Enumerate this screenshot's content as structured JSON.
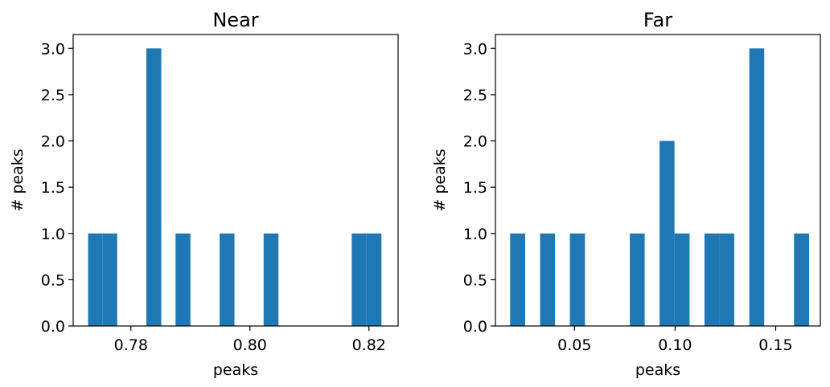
{
  "chart_data": [
    {
      "type": "bar",
      "title": "Near",
      "xlabel": "peaks",
      "ylabel": "# peaks",
      "xlim": [
        0.7703,
        0.8249
      ],
      "ylim": [
        0,
        3.15
      ],
      "xticks": [
        0.78,
        0.8,
        0.82
      ],
      "xtick_labels": [
        "0.78",
        "0.80",
        "0.82"
      ],
      "yticks": [
        0,
        0.5,
        1.0,
        1.5,
        2.0,
        2.5,
        3.0
      ],
      "ytick_labels": [
        "0.0",
        "0.5",
        "1.0",
        "1.5",
        "2.0",
        "2.5",
        "3.0"
      ],
      "bar_color": "#1f77b4",
      "bins": [
        {
          "x0": 0.7728,
          "x1": 0.7752,
          "count": 1
        },
        {
          "x0": 0.7752,
          "x1": 0.7777,
          "count": 1
        },
        {
          "x0": 0.7826,
          "x1": 0.7851,
          "count": 3
        },
        {
          "x0": 0.7875,
          "x1": 0.79,
          "count": 1
        },
        {
          "x0": 0.7949,
          "x1": 0.7974,
          "count": 1
        },
        {
          "x0": 0.8023,
          "x1": 0.8048,
          "count": 1
        },
        {
          "x0": 0.8171,
          "x1": 0.8196,
          "count": 1
        },
        {
          "x0": 0.8196,
          "x1": 0.8221,
          "count": 1
        }
      ]
    },
    {
      "type": "bar",
      "title": "Far",
      "xlabel": "peaks",
      "ylabel": "# peaks",
      "xlim": [
        0.0107,
        0.1722
      ],
      "ylim": [
        0,
        3.15
      ],
      "xticks": [
        0.05,
        0.1,
        0.15
      ],
      "xtick_labels": [
        "0.05",
        "0.10",
        "0.15"
      ],
      "yticks": [
        0,
        0.5,
        1.0,
        1.5,
        2.0,
        2.5,
        3.0
      ],
      "ytick_labels": [
        "0.0",
        "0.5",
        "1.0",
        "1.5",
        "2.0",
        "2.5",
        "3.0"
      ],
      "bar_color": "#1f77b4",
      "bins": [
        {
          "x0": 0.018,
          "x1": 0.0255,
          "count": 1
        },
        {
          "x0": 0.0329,
          "x1": 0.0403,
          "count": 1
        },
        {
          "x0": 0.0477,
          "x1": 0.0552,
          "count": 1
        },
        {
          "x0": 0.0775,
          "x1": 0.0849,
          "count": 1
        },
        {
          "x0": 0.0923,
          "x1": 0.0997,
          "count": 2
        },
        {
          "x0": 0.0997,
          "x1": 0.1072,
          "count": 1
        },
        {
          "x0": 0.1146,
          "x1": 0.122,
          "count": 1
        },
        {
          "x0": 0.122,
          "x1": 0.1294,
          "count": 1
        },
        {
          "x0": 0.1369,
          "x1": 0.1443,
          "count": 3
        },
        {
          "x0": 0.1591,
          "x1": 0.1666,
          "count": 1
        }
      ]
    }
  ]
}
